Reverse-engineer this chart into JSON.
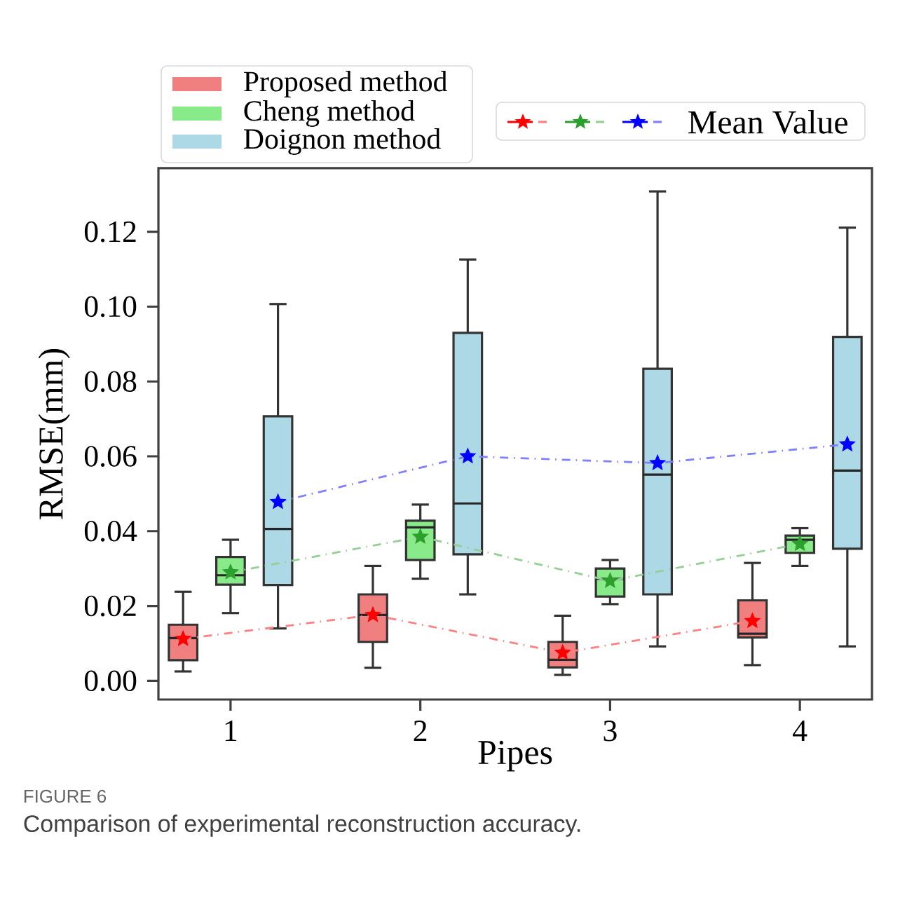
{
  "chart_data": {
    "type": "box",
    "xlabel": "Pipes",
    "ylabel": "RMSE(mm)",
    "categories": [
      "1",
      "2",
      "3",
      "4"
    ],
    "ylim": [
      -0.005,
      0.137
    ],
    "yticks": [
      {
        "value": 0,
        "label": "0.00"
      },
      {
        "value": 0.02,
        "label": "0.02"
      },
      {
        "value": 0.04,
        "label": "0.04"
      },
      {
        "value": 0.06,
        "label": "0.06"
      },
      {
        "value": 0.08,
        "label": "0.08"
      },
      {
        "value": 0.1,
        "label": "0.10"
      },
      {
        "value": 0.12,
        "label": "0.12"
      }
    ],
    "legend": "top left",
    "grid": false,
    "annotations": [
      "Mean Value",
      "FIGURE 6",
      "Comparison of experimental reconstruction accuracy."
    ],
    "series": [
      {
        "name": "Proposed method",
        "color": "#f08080",
        "boxes": [
          {
            "low": 0.0025,
            "q1": 0.0055,
            "median": 0.0114,
            "q3": 0.015,
            "high": 0.0238
          },
          {
            "low": 0.0035,
            "q1": 0.0104,
            "median": 0.0176,
            "q3": 0.0231,
            "high": 0.0307
          },
          {
            "low": 0.0016,
            "q1": 0.0036,
            "median": 0.0056,
            "q3": 0.0104,
            "high": 0.0174
          },
          {
            "low": 0.0042,
            "q1": 0.0116,
            "median": 0.0126,
            "q3": 0.0215,
            "high": 0.0315
          }
        ]
      },
      {
        "name": "Cheng method",
        "color": "#88ea88",
        "boxes": [
          {
            "low": 0.0181,
            "q1": 0.0257,
            "median": 0.0282,
            "q3": 0.0331,
            "high": 0.0377
          },
          {
            "low": 0.0273,
            "q1": 0.0323,
            "median": 0.041,
            "q3": 0.0428,
            "high": 0.0471
          },
          {
            "low": 0.0205,
            "q1": 0.0225,
            "median": 0.0273,
            "q3": 0.03,
            "high": 0.0323
          },
          {
            "low": 0.0307,
            "q1": 0.0342,
            "median": 0.0377,
            "q3": 0.0388,
            "high": 0.0408
          }
        ]
      },
      {
        "name": "Doignon method",
        "color": "#add8e6",
        "boxes": [
          {
            "low": 0.014,
            "q1": 0.0256,
            "median": 0.0406,
            "q3": 0.0707,
            "high": 0.1007
          },
          {
            "low": 0.0231,
            "q1": 0.0338,
            "median": 0.0474,
            "q3": 0.093,
            "high": 0.1126
          },
          {
            "low": 0.0092,
            "q1": 0.0231,
            "median": 0.0551,
            "q3": 0.0834,
            "high": 0.1308
          },
          {
            "low": 0.0092,
            "q1": 0.0353,
            "median": 0.0562,
            "q3": 0.0919,
            "high": 0.1211
          }
        ]
      },
      {
        "type": "line",
        "color": "#ff0000",
        "marker": "star",
        "line_style": "dashed",
        "values": [
          0.0112,
          0.0176,
          0.0075,
          0.016
        ]
      },
      {
        "type": "line",
        "color": "#2ca02c",
        "marker": "star",
        "line_style": "dashed",
        "values": [
          0.029,
          0.0385,
          0.0267,
          0.0366
        ]
      },
      {
        "type": "line",
        "color": "#0000ff",
        "marker": "star",
        "line_style": "dashed",
        "values": [
          0.0478,
          0.06,
          0.0582,
          0.0632
        ]
      }
    ]
  }
}
